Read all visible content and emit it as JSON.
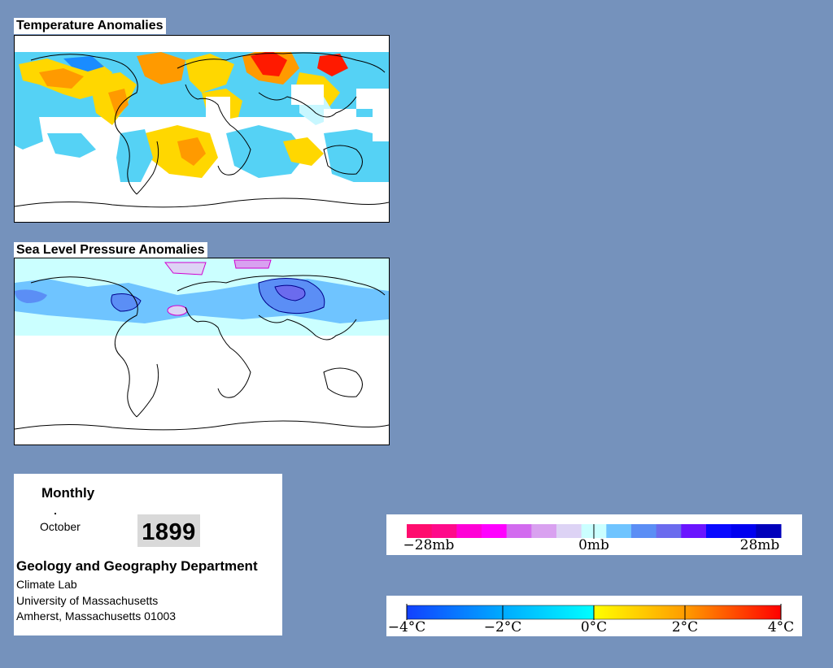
{
  "temperature_map": {
    "title": "Temperature Anomalies"
  },
  "pressure_map": {
    "title": "Sea Level Pressure Anomalies"
  },
  "info": {
    "period": "Monthly",
    "month": "October",
    "year": "1899",
    "department": "Geology and Geography Department",
    "address_lines": [
      "Climate Lab",
      "University of Massachusetts",
      "Amherst, Massachusetts 01003"
    ]
  },
  "pressure_legend": {
    "labels": [
      "−28mb",
      "0mb",
      "28mb"
    ],
    "colors": [
      "#ff0d6e",
      "#ff0a8a",
      "#ff00d6",
      "#ff00ff",
      "#d26bef",
      "#d9a1f0",
      "#ddd3f5",
      "#cbffff",
      "#6fc4ff",
      "#5b8ef5",
      "#6b6bee",
      "#6a15ff",
      "#0909ff",
      "#0000f0",
      "#0000bb"
    ]
  },
  "temperature_legend": {
    "labels": [
      "−4°C",
      "−2°C",
      "0°C",
      "2°C",
      "4°C"
    ],
    "colors": [
      "#1240ff",
      "#00a8ff",
      "#00ffff",
      "#ffff00",
      "#ff9900",
      "#ff0000"
    ]
  },
  "map_colors": {
    "temp_warm_strong": "#ff1a00",
    "temp_warm": "#ff9a00",
    "temp_mild": "#ffd700",
    "temp_neutral": "#c8f7ff",
    "temp_cool": "#55d2f5",
    "temp_cold": "#1a8cff",
    "slp_light": "#cbffff",
    "slp_mid": "#6fc4ff",
    "slp_deep": "#5b8ef5",
    "slp_pink": "#d8a1f0"
  }
}
